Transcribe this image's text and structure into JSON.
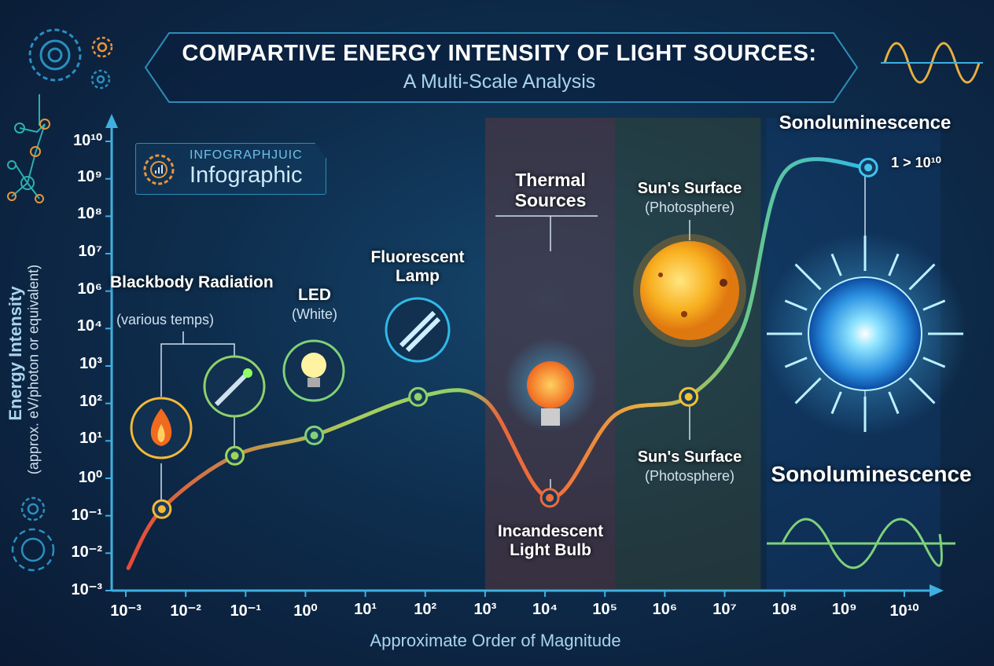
{
  "header": {
    "title": "COMPARTIVE ENERGY INTENSITY OF LIGHT SOURCES:",
    "subtitle": "A Multi-Scale Analysis"
  },
  "badge": {
    "small": "INFOGRAPHJUIC",
    "large": "Infographic",
    "icon": "gear-chart-icon"
  },
  "colors": {
    "axis": "#3fb0e0",
    "curve_start": "#e8483a",
    "curve_mid": "#8fd16a",
    "curve_end": "#2fb9e8",
    "thermal_band": "#6b3a3a",
    "sun_band": "#3c4a30",
    "sono_band": "#123a6a"
  },
  "chart_data": {
    "type": "line",
    "title": "COMPARTIVE ENERGY INTENSITY OF LIGHT SOURCES:",
    "subtitle": "A Multi-Scale Analysis",
    "xlabel": "Approximate Order of Magnitude",
    "ylabel": "Energy Intensity",
    "ylabel_sub": "(approx. eV/photon or equivalent)",
    "x_scale": "log",
    "y_scale": "log",
    "xlim": [
      0.001,
      10000000000
    ],
    "ylim": [
      0.001,
      10000000000
    ],
    "x_ticks": [
      "10⁻³",
      "10⁻²",
      "10⁻¹",
      "10⁰",
      "10¹",
      "10²",
      "10³",
      "10⁴",
      "10⁵",
      "10⁶",
      "10⁷",
      "10⁸",
      "10⁹",
      "10¹⁰"
    ],
    "y_ticks": [
      "10¹⁰",
      "10⁹",
      "10⁸",
      "10⁷",
      "10⁶",
      "10⁴",
      "10³",
      "10²",
      "10¹",
      "10⁰",
      "10⁻¹",
      "10⁻²",
      "10⁻³"
    ],
    "y_tick_exponents": [
      10,
      9,
      8,
      7,
      6,
      4,
      3,
      2,
      1,
      0,
      -1,
      -2,
      -3
    ],
    "grid": false,
    "curve": [
      [
        0.0011,
        0.004
      ],
      [
        0.004,
        0.15
      ],
      [
        0.066,
        4
      ],
      [
        1.4,
        14
      ],
      [
        76,
        150
      ],
      [
        1000,
        120
      ],
      [
        12000,
        0.3
      ],
      [
        150000,
        50
      ],
      [
        2500000,
        150
      ],
      [
        20000000,
        10000
      ],
      [
        100000000,
        1500000000
      ],
      [
        2500000000,
        2000000000
      ]
    ],
    "points": [
      {
        "name": "Blackbody Radiation",
        "x": 0.004,
        "y": 0.15,
        "color": "#f4b93a"
      },
      {
        "name": "Laser",
        "x": 0.066,
        "y": 4,
        "color": "#9bd65a"
      },
      {
        "name": "LED",
        "x": 1.4,
        "y": 14,
        "color": "#7fd17a"
      },
      {
        "name": "Fluorescent Lamp",
        "x": 76,
        "y": 150,
        "color": "#8fd16a"
      },
      {
        "name": "Incandescent Light Bulb",
        "x": 12000,
        "y": 0.3,
        "color": "#f06a3a"
      },
      {
        "name": "Sun's Surface",
        "x": 2500000,
        "y": 150,
        "color": "#f4c030"
      },
      {
        "name": "Sonoluminescence",
        "x": 2500000000,
        "y": 2000000000,
        "color": "#3fc4f0"
      }
    ],
    "bands": [
      {
        "name": "Thermal Sources",
        "from": 1000,
        "to": 150000
      },
      {
        "name": "Sun's Surface",
        "from": 150000,
        "to": 40000000
      },
      {
        "name": "Sonoluminescence",
        "from": 50000000,
        "to": 40000000000
      }
    ]
  },
  "annotations": {
    "blackbody": {
      "title": "Blackbody Radiation",
      "sub": "(various temps)"
    },
    "led": {
      "title": "LED",
      "sub": "(White)"
    },
    "fluorescent": {
      "title": "Fluorescent Lamp"
    },
    "thermal": {
      "title": "Thermal Sources"
    },
    "sun_top": {
      "title": "Sun's Surface",
      "sub": "(Photosphere)"
    },
    "sun_bottom": {
      "title": "Sun's Surface",
      "sub": "(Photosphere)"
    },
    "sono_top": {
      "title": "Sonoluminescence"
    },
    "sono_value": "1 > 10¹⁰",
    "sono_bottom": {
      "title": "Sonoluminescence"
    },
    "incandescent": {
      "title": "Incandescent Light Bulb"
    }
  }
}
